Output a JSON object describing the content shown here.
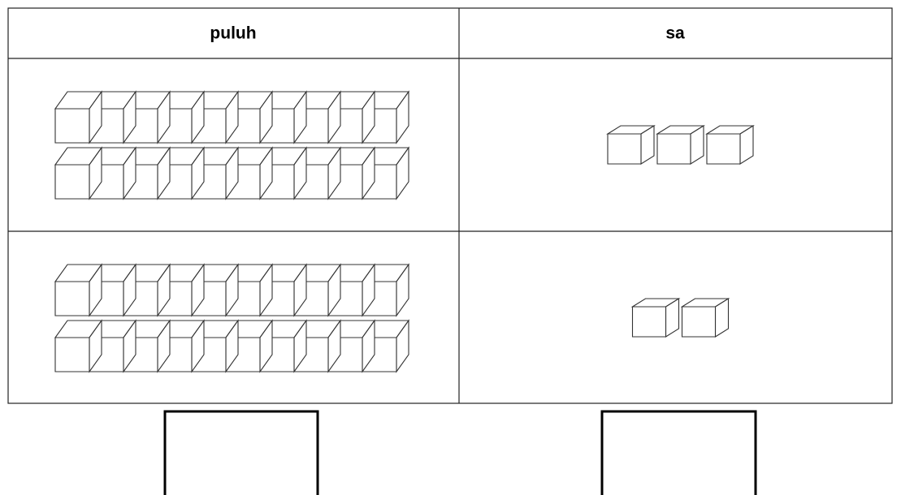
{
  "table": {
    "header": [
      "puluh",
      "sa"
    ],
    "rows": [
      {
        "puluh": 2,
        "sa": 3
      },
      {
        "puluh": 2,
        "sa": 2
      }
    ]
  }
}
